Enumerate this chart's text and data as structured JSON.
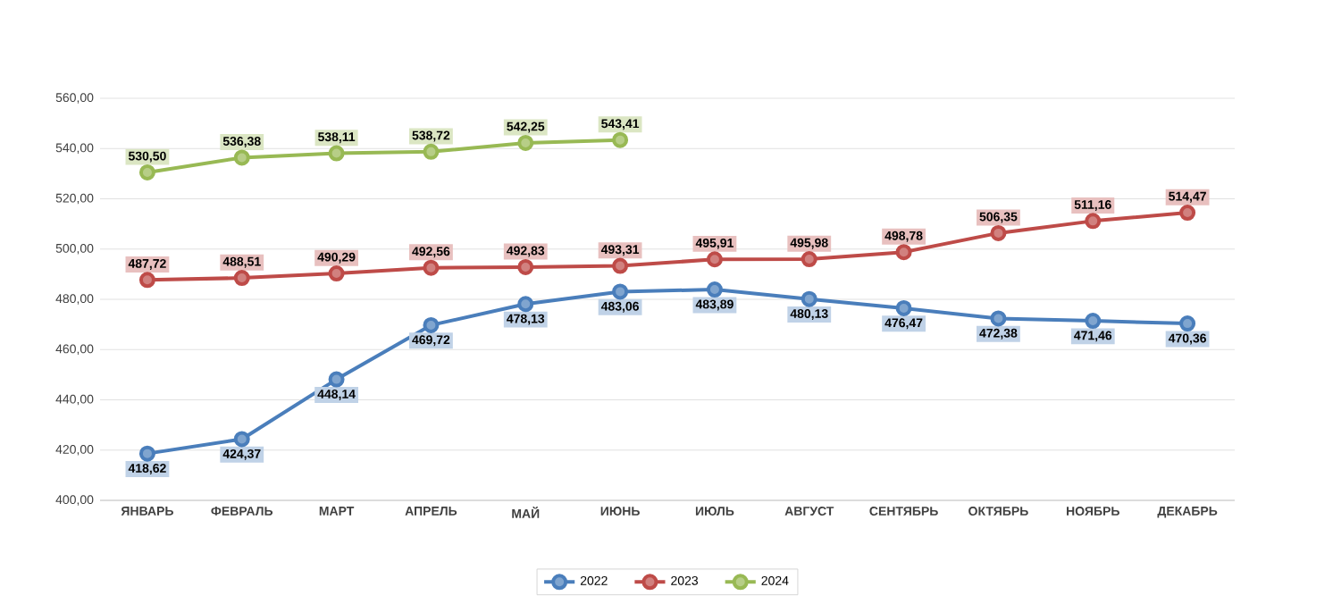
{
  "chart_data": {
    "type": "line",
    "categories": [
      "ЯНВАРЬ",
      "ФЕВРАЛЬ",
      "МАРТ",
      "АПРЕЛЬ",
      "МАЙ",
      "ИЮНЬ",
      "ИЮЛЬ",
      "АВГУСТ",
      "СЕНТЯБРЬ",
      "ОКТЯБРЬ",
      "НОЯБРЬ",
      "ДЕКАБРЬ"
    ],
    "series": [
      {
        "name": "2022",
        "color": "#4a7ebb",
        "values": [
          418.62,
          424.37,
          448.14,
          469.72,
          478.13,
          483.06,
          483.89,
          480.13,
          476.47,
          472.38,
          471.46,
          470.36
        ],
        "value_labels": [
          "418,62",
          "424,37",
          "448,14",
          "469,72",
          "478,13",
          "483,06",
          "483,89",
          "480,13",
          "476,47",
          "472,38",
          "471,46",
          "470,36"
        ]
      },
      {
        "name": "2023",
        "color": "#be4b48",
        "values": [
          487.72,
          488.51,
          490.29,
          492.56,
          492.83,
          493.31,
          495.91,
          495.98,
          498.78,
          506.35,
          511.16,
          514.47
        ],
        "value_labels": [
          "487,72",
          "488,51",
          "490,29",
          "492,56",
          "492,83",
          "493,31",
          "495,91",
          "495,98",
          "498,78",
          "506,35",
          "511,16",
          "514,47"
        ]
      },
      {
        "name": "2024",
        "color": "#98b954",
        "values": [
          530.5,
          536.38,
          538.11,
          538.72,
          542.25,
          543.41,
          null,
          null,
          null,
          null,
          null,
          null
        ],
        "value_labels": [
          "530,50",
          "536,38",
          "538,11",
          "538,72",
          "542,25",
          "543,41",
          null,
          null,
          null,
          null,
          null,
          null
        ]
      }
    ],
    "ylim": [
      400,
      560
    ],
    "yticks": [
      {
        "value": 400,
        "label": "400,00"
      },
      {
        "value": 420,
        "label": "420,00"
      },
      {
        "value": 440,
        "label": "440,00"
      },
      {
        "value": 460,
        "label": "460,00"
      },
      {
        "value": 480,
        "label": "480,00"
      },
      {
        "value": 500,
        "label": "500,00"
      },
      {
        "value": 520,
        "label": "520,00"
      },
      {
        "value": 540,
        "label": "540,00"
      },
      {
        "value": 560,
        "label": "560,00"
      }
    ],
    "grid": "y",
    "legend": "bottom",
    "marker": "circle",
    "line_style": "solid"
  }
}
